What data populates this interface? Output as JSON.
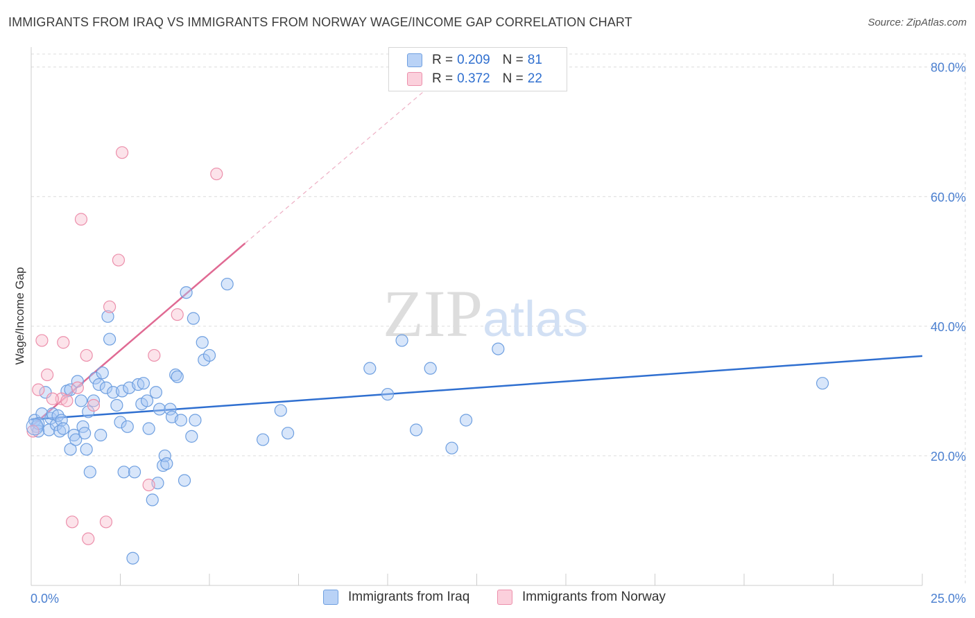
{
  "title": "IMMIGRANTS FROM IRAQ VS IMMIGRANTS FROM NORWAY WAGE/INCOME GAP CORRELATION CHART",
  "source": "Source: ZipAtlas.com",
  "colors": {
    "iraq_fill": "#a9c8f5",
    "iraq_stroke": "#6e9fe0",
    "iraq_line": "#2f6fd0",
    "norway_fill": "#f9c0d0",
    "norway_stroke": "#ec8fab",
    "norway_line": "#e06a93",
    "tick": "#4a7fd0"
  },
  "legend": {
    "rows": [
      {
        "r_label": "R =",
        "r_value": "0.209",
        "n_label": "N =",
        "n_value": "81"
      },
      {
        "r_label": "R =",
        "r_value": "0.372",
        "n_label": "N =",
        "n_value": "22"
      }
    ]
  },
  "bottom_legend": [
    "Immigrants from Iraq",
    "Immigrants from Norway"
  ],
  "watermark": "ZIPatlas",
  "chart_data": {
    "type": "scatter",
    "xlabel": "",
    "ylabel": "Wage/Income Gap",
    "x_tick_labels": [
      "0.0%",
      "25.0%"
    ],
    "y_tick_labels": [
      "20.0%",
      "40.0%",
      "60.0%",
      "80.0%"
    ],
    "y_ticks": [
      20,
      40,
      60,
      80
    ],
    "xlim": [
      0,
      25
    ],
    "ylim": [
      0,
      82
    ],
    "grid": true,
    "series": [
      {
        "name": "Immigrants from Iraq",
        "r": 0.209,
        "n": 81,
        "trend": {
          "x0": 0,
          "y0": 25.6,
          "x1": 25,
          "y1": 35.4
        },
        "points": [
          [
            0.1,
            25.5
          ],
          [
            0.15,
            24.5
          ],
          [
            0.2,
            23.8
          ],
          [
            0.3,
            26.5
          ],
          [
            0.4,
            29.8
          ],
          [
            0.5,
            24.0
          ],
          [
            0.55,
            25.8
          ],
          [
            0.6,
            26.5
          ],
          [
            0.7,
            24.8
          ],
          [
            0.75,
            26.2
          ],
          [
            0.8,
            23.8
          ],
          [
            0.85,
            25.5
          ],
          [
            0.9,
            24.2
          ],
          [
            1.0,
            30.0
          ],
          [
            1.1,
            21.0
          ],
          [
            1.2,
            23.2
          ],
          [
            1.25,
            22.5
          ],
          [
            1.3,
            31.5
          ],
          [
            1.4,
            28.5
          ],
          [
            1.45,
            24.5
          ],
          [
            1.5,
            23.5
          ],
          [
            1.55,
            21.0
          ],
          [
            1.6,
            26.8
          ],
          [
            1.65,
            17.5
          ],
          [
            1.75,
            28.5
          ],
          [
            1.8,
            32.0
          ],
          [
            1.9,
            31.0
          ],
          [
            1.95,
            23.2
          ],
          [
            2.0,
            32.8
          ],
          [
            2.1,
            30.5
          ],
          [
            2.15,
            41.5
          ],
          [
            2.2,
            38.0
          ],
          [
            2.3,
            29.8
          ],
          [
            2.4,
            27.8
          ],
          [
            2.5,
            25.2
          ],
          [
            2.55,
            30.0
          ],
          [
            2.6,
            17.5
          ],
          [
            2.7,
            24.5
          ],
          [
            2.75,
            30.5
          ],
          [
            2.85,
            4.2
          ],
          [
            2.9,
            17.5
          ],
          [
            3.0,
            31.0
          ],
          [
            3.1,
            28.0
          ],
          [
            3.15,
            31.2
          ],
          [
            3.25,
            28.5
          ],
          [
            3.3,
            24.2
          ],
          [
            3.4,
            13.2
          ],
          [
            3.5,
            29.8
          ],
          [
            3.55,
            15.8
          ],
          [
            3.6,
            27.2
          ],
          [
            3.7,
            18.5
          ],
          [
            3.75,
            20.0
          ],
          [
            3.8,
            18.8
          ],
          [
            3.9,
            27.2
          ],
          [
            3.95,
            26.0
          ],
          [
            4.05,
            32.5
          ],
          [
            4.1,
            32.2
          ],
          [
            4.2,
            25.5
          ],
          [
            4.3,
            16.2
          ],
          [
            4.35,
            45.2
          ],
          [
            4.5,
            23.0
          ],
          [
            4.55,
            41.2
          ],
          [
            4.6,
            25.5
          ],
          [
            4.8,
            37.5
          ],
          [
            4.85,
            34.8
          ],
          [
            5.0,
            35.5
          ],
          [
            5.5,
            46.5
          ],
          [
            6.5,
            22.5
          ],
          [
            7.0,
            27.0
          ],
          [
            7.2,
            23.5
          ],
          [
            9.5,
            33.5
          ],
          [
            10.0,
            29.5
          ],
          [
            10.4,
            37.8
          ],
          [
            10.8,
            24.0
          ],
          [
            11.2,
            33.5
          ],
          [
            11.8,
            21.2
          ],
          [
            12.2,
            25.5
          ],
          [
            13.1,
            36.5
          ],
          [
            22.2,
            31.2
          ],
          [
            0.2,
            25.0
          ],
          [
            1.1,
            30.2
          ]
        ]
      },
      {
        "name": "Immigrants from Norway",
        "r": 0.372,
        "n": 22,
        "trend": {
          "x0": 0,
          "y0": 24.5,
          "x1": 6.0,
          "y1": 52.8,
          "dash_x1": 11.5,
          "dash_y1": 78.5
        },
        "points": [
          [
            0.05,
            23.8
          ],
          [
            0.2,
            30.2
          ],
          [
            0.3,
            37.8
          ],
          [
            0.45,
            32.5
          ],
          [
            0.9,
            37.5
          ],
          [
            0.85,
            28.8
          ],
          [
            1.0,
            28.5
          ],
          [
            1.15,
            9.8
          ],
          [
            1.3,
            30.5
          ],
          [
            1.4,
            56.5
          ],
          [
            1.55,
            35.5
          ],
          [
            1.6,
            7.2
          ],
          [
            1.75,
            27.8
          ],
          [
            2.1,
            9.8
          ],
          [
            2.2,
            43.0
          ],
          [
            2.45,
            50.2
          ],
          [
            2.55,
            66.8
          ],
          [
            3.3,
            15.5
          ],
          [
            3.45,
            35.5
          ],
          [
            4.1,
            41.8
          ],
          [
            5.2,
            63.5
          ],
          [
            0.6,
            28.8
          ]
        ]
      }
    ]
  }
}
